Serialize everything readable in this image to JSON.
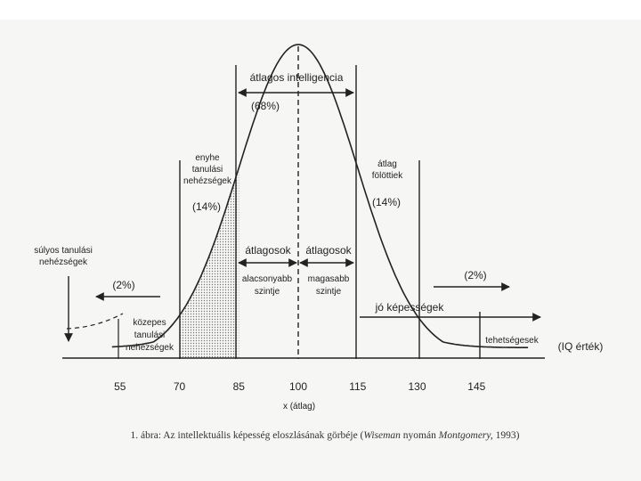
{
  "diagram": {
    "axis": {
      "unit_label": "(IQ érték)",
      "x_caption": "x (átlag)",
      "ticks": [
        55,
        70,
        85,
        100,
        115,
        130,
        145
      ],
      "range": [
        40,
        160
      ]
    },
    "regions": {
      "average": {
        "title": "átlagos intelligencia",
        "percent": "(68%)"
      },
      "mild": {
        "lines": [
          "enyhe",
          "tanulási",
          "nehézségek"
        ],
        "percent": "(14%)"
      },
      "above": {
        "lines": [
          "átlag",
          "fölöttiek"
        ],
        "percent": "(14%)"
      },
      "severe": {
        "lines": [
          "súlyos tanulási",
          "nehézségek"
        ],
        "percent": "(2%)"
      },
      "moderate": {
        "lines": [
          "közepes",
          "tanulási",
          "nehézségek"
        ]
      },
      "lower_avg": {
        "title": "átlagosok",
        "lines": [
          "alacsonyabb",
          "szintje"
        ]
      },
      "upper_avg": {
        "title": "átlagosok",
        "lines": [
          "magasabb",
          "szintje"
        ]
      },
      "good": {
        "title": "jó képességek"
      },
      "talented": {
        "title": "tehetségesek",
        "percent": "(2%)"
      }
    }
  },
  "caption": {
    "prefix": "1. ábra: Az intellektuális képesség eloszlásának görbéje (",
    "author1": "Wiseman",
    "middle": " nyomán ",
    "author2": "Montgomery,",
    "suffix": " 1993)"
  }
}
